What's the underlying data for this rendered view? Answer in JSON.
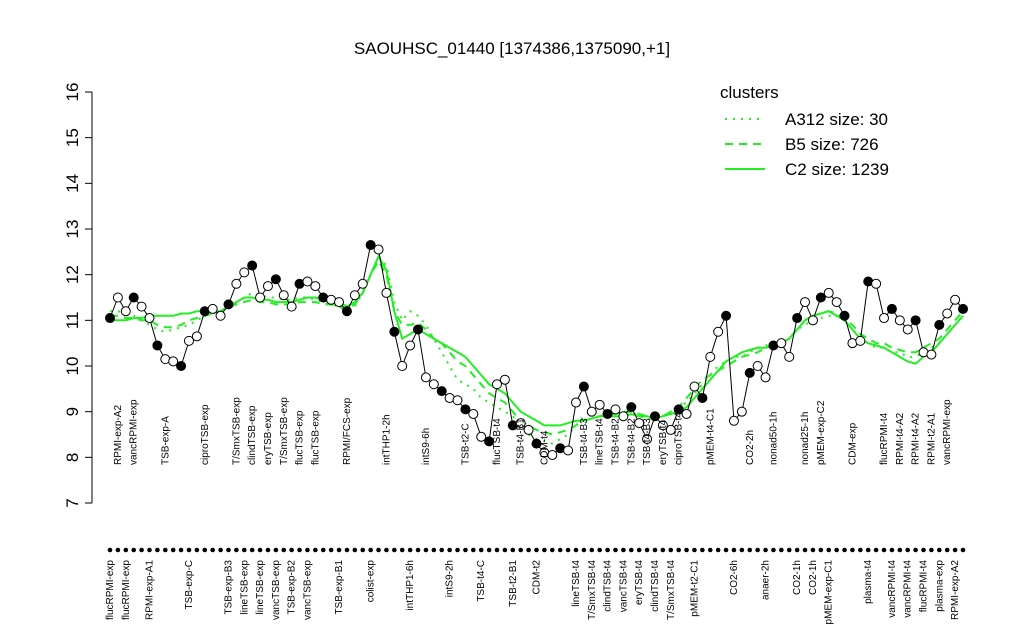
{
  "chart_data": {
    "type": "line",
    "title": "SAOUHSC_01440 [1374386,1375090,+1]",
    "categories": [
      "flucRPMI-exp",
      "RPMI-exp-A2",
      "flucRPMI-exp",
      "vancRPMI-exp",
      null,
      "RPMI-exp-A1",
      null,
      "TSB-exp-A",
      null,
      null,
      "TSB-exp-C",
      null,
      "ciproTSB-exp",
      null,
      null,
      "TSB-exp-B3",
      "T/SmxTSB-exp",
      "lineTSB-exp",
      "clindTSB-exp",
      "lineTSB-exp",
      "eryTSB-exp",
      "vancTSB-exp",
      "T/SmxTSB-exp",
      "TSB-exp-B2",
      "flucTSB-exp",
      "vancTSB-exp",
      "flucTSB-exp",
      null,
      null,
      "TSB-exp-B1",
      "RPMI/FCS-exp",
      null,
      null,
      "colist-exp",
      null,
      "intTHP1-2h",
      null,
      null,
      "intTHP1-6h",
      null,
      "intS9-6h",
      null,
      null,
      "intS9-2h",
      null,
      "TSB-t2-C",
      null,
      "TSB-t4-C",
      null,
      "flucTSB-t4",
      null,
      "TSB-t2-B1",
      "TSB-t4-B1",
      null,
      "CDM-t2",
      "CDM-t4",
      null,
      null,
      null,
      "lineTSB-t4",
      "TSB-t4-B3",
      "T/SmxTSB-t4",
      "lineTSB-t4",
      "clindTSB-t4",
      "TSB-t4-B2",
      "vancTSB-t4",
      "TSB-t4-B2",
      "eryTSB-t4",
      "TSB-t4-B3",
      "clindTSB-t4",
      "eryTSB-t4",
      "T/SmxTSB-t4",
      "ciproTSB-t4",
      null,
      "pMEM-t2-C1",
      null,
      "pMEM-t4-C1",
      null,
      null,
      "CO2-6h",
      null,
      "CO2-2h",
      null,
      "anaer-2h",
      "nonad50-1h",
      null,
      null,
      "CO2-1h",
      "nonad25-1h",
      "CO2-1h",
      "pMEM-exp-C2",
      "pMEM-exp-C1",
      null,
      null,
      "CDM-exp",
      null,
      "plasma-t4",
      null,
      "flucRPMI-t4",
      "vancRPMI-t4",
      "RPMI-t4-A2",
      "vancRPMI-t4",
      "RPMI-t4-A2",
      "flucRPMI-t4",
      "RPMI-t2-A1",
      "plasma-exp",
      "vancRPMI-exp",
      "RPMI-exp-A2",
      null
    ],
    "values": [
      11.05,
      11.5,
      11.2,
      11.5,
      11.3,
      11.05,
      10.45,
      10.15,
      10.1,
      10.0,
      10.55,
      10.65,
      11.2,
      11.25,
      11.1,
      11.35,
      11.8,
      12.05,
      12.2,
      11.5,
      11.75,
      11.9,
      11.55,
      11.3,
      11.8,
      11.85,
      11.75,
      11.5,
      11.45,
      11.4,
      11.2,
      11.55,
      11.8,
      12.65,
      12.55,
      11.6,
      10.75,
      10.0,
      10.45,
      10.8,
      9.75,
      9.6,
      9.45,
      9.3,
      9.25,
      9.05,
      8.95,
      8.45,
      8.35,
      9.6,
      9.7,
      8.7,
      8.75,
      8.6,
      8.3,
      8.1,
      8.05,
      8.2,
      8.15,
      9.2,
      9.55,
      9.0,
      9.15,
      8.95,
      9.05,
      8.9,
      9.1,
      8.75,
      8.4,
      8.9,
      8.7,
      8.6,
      9.05,
      8.95,
      9.55,
      9.3,
      10.2,
      10.75,
      11.1,
      8.8,
      9.0,
      9.85,
      10.0,
      9.75,
      10.45,
      10.5,
      10.2,
      11.05,
      11.4,
      11.0,
      11.5,
      11.6,
      11.4,
      11.1,
      10.5,
      10.55,
      11.85,
      11.8,
      11.05,
      11.25,
      11.0,
      10.8,
      11.0,
      10.3,
      10.25,
      10.9,
      11.15,
      11.45,
      11.25
    ],
    "color": "#000000",
    "legend_title": "clusters",
    "series": [
      {
        "name": "A312 size: 30",
        "color": "#22ee22",
        "style": "dotted",
        "values": [
          11.2,
          11.2,
          11.15,
          11.1,
          11.0,
          10.9,
          10.8,
          10.75,
          10.8,
          10.85,
          10.9,
          11.0,
          11.1,
          11.15,
          11.2,
          11.3,
          11.4,
          11.5,
          11.6,
          11.55,
          11.5,
          11.5,
          11.45,
          11.45,
          11.5,
          11.5,
          11.45,
          11.4,
          11.35,
          11.3,
          11.2,
          11.3,
          11.6,
          12.0,
          12.4,
          12.2,
          11.4,
          11.0,
          11.2,
          11.1,
          10.9,
          10.6,
          10.3,
          10.0,
          9.7,
          9.6,
          9.5,
          9.3,
          9.2,
          9.1,
          9.0,
          8.9,
          8.7,
          8.5,
          8.4,
          8.35,
          8.3,
          8.4,
          8.5,
          8.7,
          8.9,
          9.0,
          9.0,
          9.0,
          8.95,
          9.0,
          9.0,
          8.9,
          8.85,
          8.8,
          8.9,
          9.0,
          9.1,
          9.2,
          9.4,
          9.6,
          9.8,
          10.0,
          10.1,
          10.2,
          10.2,
          10.3,
          10.4,
          10.45,
          10.5,
          10.5,
          10.6,
          10.8,
          10.9,
          11.0,
          11.05,
          11.1,
          11.1,
          11.0,
          10.8,
          10.6,
          10.5,
          10.4,
          10.4,
          10.3,
          10.3,
          10.2,
          10.2,
          10.3,
          10.4,
          10.5,
          10.7,
          10.9,
          11.1
        ]
      },
      {
        "name": "B5 size: 726",
        "color": "#22ee22",
        "style": "dashed",
        "values": [
          11.1,
          11.1,
          11.05,
          11.05,
          11.0,
          11.0,
          10.9,
          10.85,
          10.85,
          10.9,
          11.0,
          11.05,
          11.1,
          11.15,
          11.2,
          11.3,
          11.35,
          11.4,
          11.45,
          11.4,
          11.4,
          11.35,
          11.35,
          11.35,
          11.4,
          11.4,
          11.4,
          11.35,
          11.35,
          11.3,
          11.25,
          11.35,
          11.6,
          12.0,
          12.3,
          12.0,
          11.2,
          10.9,
          10.9,
          10.95,
          10.8,
          10.6,
          10.5,
          10.3,
          10.1,
          10.0,
          9.8,
          9.6,
          9.4,
          9.3,
          9.2,
          9.0,
          8.8,
          8.7,
          8.6,
          8.55,
          8.5,
          8.55,
          8.6,
          8.7,
          8.8,
          8.85,
          8.9,
          8.95,
          8.95,
          9.0,
          9.0,
          8.95,
          8.9,
          8.85,
          8.9,
          9.0,
          9.1,
          9.3,
          9.5,
          9.7,
          9.8,
          9.9,
          10.0,
          10.1,
          10.2,
          10.25,
          10.3,
          10.4,
          10.45,
          10.5,
          10.6,
          10.8,
          11.0,
          11.1,
          11.15,
          11.2,
          11.15,
          11.0,
          10.9,
          10.7,
          10.6,
          10.5,
          10.5,
          10.4,
          10.35,
          10.3,
          10.3,
          10.4,
          10.5,
          10.6,
          10.8,
          11.0,
          11.2
        ]
      },
      {
        "name": "C2 size: 1239",
        "color": "#22ee22",
        "style": "solid",
        "values": [
          11.0,
          11.0,
          11.0,
          11.05,
          11.05,
          11.1,
          11.1,
          11.1,
          11.1,
          11.15,
          11.15,
          11.2,
          11.2,
          11.2,
          11.2,
          11.3,
          11.4,
          11.5,
          11.5,
          11.45,
          11.45,
          11.4,
          11.4,
          11.4,
          11.45,
          11.5,
          11.5,
          11.45,
          11.4,
          11.4,
          11.3,
          11.4,
          11.6,
          12.0,
          12.4,
          12.1,
          11.2,
          10.6,
          10.7,
          10.8,
          10.7,
          10.6,
          10.5,
          10.4,
          10.3,
          10.2,
          10.0,
          9.8,
          9.6,
          9.5,
          9.4,
          9.2,
          9.0,
          8.9,
          8.8,
          8.7,
          8.7,
          8.7,
          8.75,
          8.8,
          8.8,
          8.85,
          8.9,
          8.9,
          8.9,
          8.9,
          8.95,
          8.9,
          8.9,
          8.85,
          8.9,
          8.95,
          9.0,
          9.1,
          9.3,
          9.5,
          9.7,
          9.9,
          10.1,
          10.2,
          10.3,
          10.35,
          10.4,
          10.4,
          10.45,
          10.5,
          10.6,
          10.8,
          11.0,
          11.1,
          11.15,
          11.2,
          11.1,
          11.0,
          10.8,
          10.6,
          10.5,
          10.45,
          10.4,
          10.3,
          10.2,
          10.1,
          10.05,
          10.2,
          10.3,
          10.5,
          10.7,
          10.9,
          11.1
        ]
      }
    ],
    "ylim": [
      7,
      16
    ],
    "yticks": [
      7,
      8,
      9,
      10,
      11,
      12,
      13,
      14,
      15,
      16
    ],
    "legend": "top-right"
  }
}
